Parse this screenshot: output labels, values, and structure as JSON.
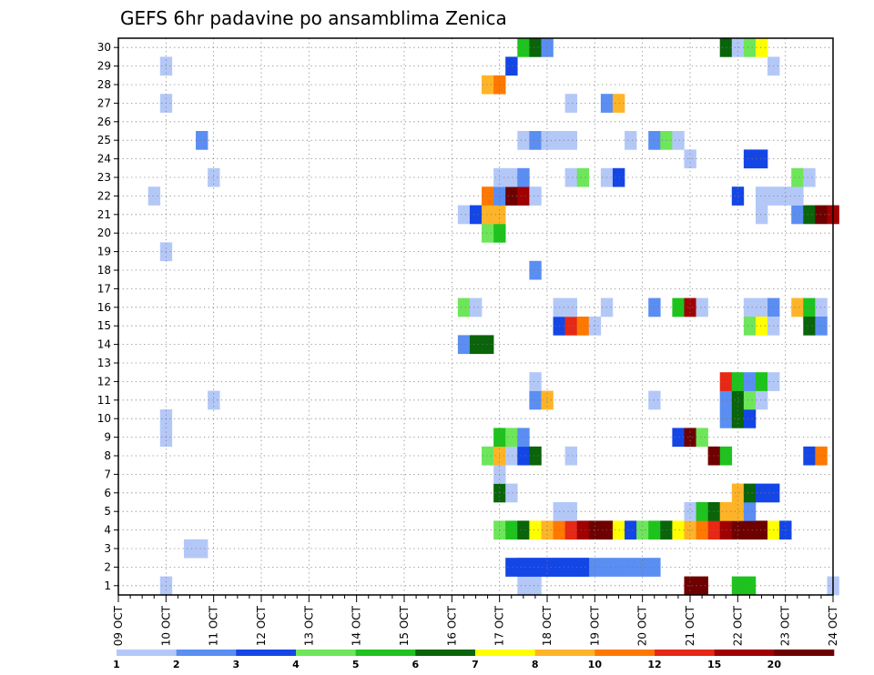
{
  "chart_data": {
    "type": "heatmap",
    "title": "GEFS 6hr padavine po ansamblima Zenica",
    "xlabel": "",
    "ylabel": "",
    "x_ticks": [
      "09 OCT",
      "10 OCT",
      "11 OCT",
      "12 OCT",
      "13 OCT",
      "14 OCT",
      "15 OCT",
      "16 OCT",
      "17 OCT",
      "18 OCT",
      "19 OCT",
      "20 OCT",
      "21 OCT",
      "22 OCT",
      "23 OCT",
      "24 OCT"
    ],
    "y_ticks": [
      1,
      2,
      3,
      4,
      5,
      6,
      7,
      8,
      9,
      10,
      11,
      12,
      13,
      14,
      15,
      16,
      17,
      18,
      19,
      20,
      21,
      22,
      23,
      24,
      25,
      26,
      27,
      28,
      29,
      30
    ],
    "xlim_days": [
      9,
      24
    ],
    "ylim_members": [
      1,
      30
    ],
    "step_hours": 6,
    "grid": true,
    "grid_style": "dotted",
    "colorbar": {
      "position": "bottom",
      "labels": [
        "1",
        "2",
        "3",
        "4",
        "5",
        "6",
        "7",
        "8",
        "10",
        "12",
        "15",
        "20"
      ],
      "colors": [
        "#b4c8f8",
        "#5a8ef2",
        "#1446e6",
        "#6ee65a",
        "#1ec31e",
        "#0a640a",
        "#ffff00",
        "#ffb428",
        "#ff7800",
        "#e62814",
        "#a00000",
        "#6e0000"
      ]
    },
    "cells": [
      [
        "10.00",
        1,
        0
      ],
      [
        "17.50",
        1,
        0
      ],
      [
        "17.75",
        1,
        0
      ],
      [
        "21.00",
        1,
        11
      ],
      [
        "21.25",
        1,
        11
      ],
      [
        "22.00",
        1,
        4
      ],
      [
        "22.25",
        1,
        4
      ],
      [
        "24.00",
        1,
        0
      ],
      [
        "17.50",
        2,
        1
      ],
      [
        "17.75",
        2,
        1
      ],
      [
        "18.00",
        2,
        1
      ],
      [
        "18.25",
        2,
        1
      ],
      [
        "18.50",
        2,
        1
      ],
      [
        "18.75",
        2,
        1
      ],
      [
        "19.00",
        2,
        1
      ],
      [
        "19.25",
        2,
        1
      ],
      [
        "19.50",
        2,
        1
      ],
      [
        "19.75",
        2,
        1
      ],
      [
        "20.00",
        2,
        1
      ],
      [
        "20.25",
        2,
        1
      ],
      [
        "17.25",
        2,
        2
      ],
      [
        "17.50",
        2,
        2
      ],
      [
        "17.75",
        2,
        2
      ],
      [
        "18.00",
        2,
        2
      ],
      [
        "18.25",
        2,
        2
      ],
      [
        "18.50",
        2,
        2
      ],
      [
        "18.75",
        2,
        2
      ],
      [
        "10.50",
        3,
        0
      ],
      [
        "10.75",
        3,
        0
      ],
      [
        "17.00",
        4,
        3
      ],
      [
        "17.25",
        4,
        4
      ],
      [
        "17.50",
        4,
        5
      ],
      [
        "17.75",
        4,
        6
      ],
      [
        "18.00",
        4,
        7
      ],
      [
        "18.25",
        4,
        8
      ],
      [
        "18.50",
        4,
        9
      ],
      [
        "18.75",
        4,
        10
      ],
      [
        "19.00",
        4,
        11
      ],
      [
        "19.25",
        4,
        11
      ],
      [
        "19.50",
        4,
        6
      ],
      [
        "19.75",
        4,
        2
      ],
      [
        "20.00",
        4,
        3
      ],
      [
        "20.25",
        4,
        4
      ],
      [
        "20.50",
        4,
        5
      ],
      [
        "20.75",
        4,
        6
      ],
      [
        "21.00",
        4,
        7
      ],
      [
        "21.25",
        4,
        8
      ],
      [
        "21.50",
        4,
        9
      ],
      [
        "21.75",
        4,
        10
      ],
      [
        "22.00",
        4,
        11
      ],
      [
        "22.25",
        4,
        11
      ],
      [
        "22.50",
        4,
        11
      ],
      [
        "22.75",
        4,
        6
      ],
      [
        "23.00",
        4,
        2
      ],
      [
        "18.25",
        5,
        0
      ],
      [
        "18.50",
        5,
        0
      ],
      [
        "21.00",
        5,
        0
      ],
      [
        "21.25",
        5,
        4
      ],
      [
        "21.50",
        5,
        5
      ],
      [
        "21.75",
        5,
        7
      ],
      [
        "22.00",
        5,
        7
      ],
      [
        "22.25",
        5,
        1
      ],
      [
        "17.00",
        6,
        5
      ],
      [
        "17.25",
        6,
        0
      ],
      [
        "22.00",
        6,
        7
      ],
      [
        "22.25",
        6,
        5
      ],
      [
        "22.50",
        6,
        2
      ],
      [
        "22.75",
        6,
        2
      ],
      [
        "17.00",
        7,
        0
      ],
      [
        "16.75",
        8,
        3
      ],
      [
        "17.00",
        8,
        7
      ],
      [
        "17.25",
        8,
        0
      ],
      [
        "17.50",
        8,
        2
      ],
      [
        "17.75",
        8,
        5
      ],
      [
        "18.50",
        8,
        0
      ],
      [
        "21.50",
        8,
        11
      ],
      [
        "21.75",
        8,
        4
      ],
      [
        "23.50",
        8,
        2
      ],
      [
        "23.75",
        8,
        8
      ],
      [
        "10.00",
        9,
        0
      ],
      [
        "17.00",
        9,
        4
      ],
      [
        "17.25",
        9,
        3
      ],
      [
        "17.50",
        9,
        1
      ],
      [
        "20.75",
        9,
        2
      ],
      [
        "21.00",
        9,
        11
      ],
      [
        "21.25",
        9,
        3
      ],
      [
        "10.00",
        10,
        0
      ],
      [
        "21.75",
        10,
        1
      ],
      [
        "22.00",
        10,
        5
      ],
      [
        "22.25",
        10,
        2
      ],
      [
        "11.00",
        11,
        0
      ],
      [
        "17.75",
        11,
        1
      ],
      [
        "18.00",
        11,
        7
      ],
      [
        "20.25",
        11,
        0
      ],
      [
        "21.75",
        11,
        1
      ],
      [
        "22.00",
        11,
        5
      ],
      [
        "22.25",
        11,
        3
      ],
      [
        "22.50",
        11,
        0
      ],
      [
        "17.75",
        12,
        0
      ],
      [
        "21.75",
        12,
        9
      ],
      [
        "22.00",
        12,
        4
      ],
      [
        "22.25",
        12,
        1
      ],
      [
        "22.50",
        12,
        4
      ],
      [
        "22.75",
        12,
        0
      ],
      [
        "16.25",
        14,
        1
      ],
      [
        "16.50",
        14,
        5
      ],
      [
        "16.75",
        14,
        5
      ],
      [
        "18.25",
        15,
        2
      ],
      [
        "18.50",
        15,
        9
      ],
      [
        "18.75",
        15,
        8
      ],
      [
        "19.00",
        15,
        0
      ],
      [
        "16.25",
        16,
        3
      ],
      [
        "16.50",
        16,
        0
      ],
      [
        "18.25",
        16,
        0
      ],
      [
        "18.50",
        16,
        0
      ],
      [
        "19.25",
        16,
        0
      ],
      [
        "20.25",
        16,
        1
      ],
      [
        "20.75",
        16,
        4
      ],
      [
        "21.00",
        16,
        10
      ],
      [
        "21.25",
        16,
        0
      ],
      [
        "22.25",
        16,
        0
      ],
      [
        "22.50",
        16,
        0
      ],
      [
        "22.75",
        16,
        1
      ],
      [
        "23.25",
        16,
        7
      ],
      [
        "23.50",
        16,
        4
      ],
      [
        "23.75",
        16,
        0
      ],
      [
        "22.25",
        15,
        3
      ],
      [
        "22.50",
        15,
        6
      ],
      [
        "22.75",
        15,
        0
      ],
      [
        "23.50",
        15,
        5
      ],
      [
        "23.75",
        15,
        1
      ],
      [
        "17.75",
        18,
        1
      ],
      [
        "10.00",
        19,
        0
      ],
      [
        "16.75",
        20,
        3
      ],
      [
        "17.00",
        20,
        4
      ],
      [
        "16.25",
        21,
        0
      ],
      [
        "16.50",
        21,
        2
      ],
      [
        "16.75",
        21,
        7
      ],
      [
        "17.00",
        21,
        7
      ],
      [
        "22.50",
        21,
        0
      ],
      [
        "23.25",
        21,
        1
      ],
      [
        "23.50",
        21,
        5
      ],
      [
        "23.75",
        21,
        11
      ],
      [
        "24.00",
        21,
        10
      ],
      [
        "9.75",
        22,
        0
      ],
      [
        "16.75",
        22,
        8
      ],
      [
        "17.00",
        22,
        1
      ],
      [
        "17.25",
        22,
        11
      ],
      [
        "17.50",
        22,
        10
      ],
      [
        "17.75",
        22,
        0
      ],
      [
        "22.00",
        22,
        2
      ],
      [
        "22.50",
        22,
        0
      ],
      [
        "22.75",
        22,
        0
      ],
      [
        "23.00",
        22,
        0
      ],
      [
        "23.25",
        22,
        0
      ],
      [
        "11.00",
        23,
        0
      ],
      [
        "17.00",
        23,
        0
      ],
      [
        "17.25",
        23,
        0
      ],
      [
        "17.50",
        23,
        1
      ],
      [
        "18.50",
        23,
        0
      ],
      [
        "18.75",
        23,
        3
      ],
      [
        "19.25",
        23,
        0
      ],
      [
        "19.50",
        23,
        2
      ],
      [
        "23.25",
        23,
        3
      ],
      [
        "23.50",
        23,
        0
      ],
      [
        "21.00",
        24,
        0
      ],
      [
        "22.25",
        24,
        2
      ],
      [
        "22.50",
        24,
        2
      ],
      [
        "10.75",
        25,
        1
      ],
      [
        "17.50",
        25,
        0
      ],
      [
        "17.75",
        25,
        1
      ],
      [
        "18.00",
        25,
        0
      ],
      [
        "18.25",
        25,
        0
      ],
      [
        "18.50",
        25,
        0
      ],
      [
        "19.75",
        25,
        0
      ],
      [
        "20.25",
        25,
        1
      ],
      [
        "20.50",
        25,
        3
      ],
      [
        "20.75",
        25,
        0
      ],
      [
        "10.00",
        27,
        0
      ],
      [
        "18.50",
        27,
        0
      ],
      [
        "19.25",
        27,
        1
      ],
      [
        "19.50",
        27,
        7
      ],
      [
        "16.75",
        28,
        7
      ],
      [
        "17.00",
        28,
        8
      ],
      [
        "10.00",
        29,
        0
      ],
      [
        "17.25",
        29,
        2
      ],
      [
        "22.75",
        29,
        0
      ],
      [
        "17.50",
        30,
        4
      ],
      [
        "17.75",
        30,
        5
      ],
      [
        "18.00",
        30,
        1
      ],
      [
        "21.75",
        30,
        5
      ],
      [
        "22.00",
        30,
        0
      ],
      [
        "22.25",
        30,
        3
      ],
      [
        "22.50",
        30,
        6
      ]
    ]
  }
}
